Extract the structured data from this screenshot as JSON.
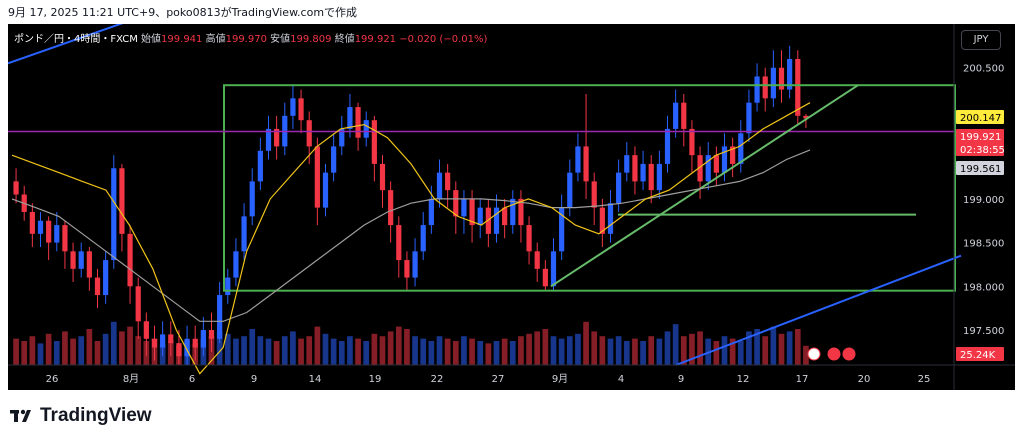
{
  "header": {
    "caption": "9月 17, 2025 11:21 UTC+9、poko0813がTradingView.comで作成"
  },
  "title_bar": {
    "symbol": "ポンド／円・4時間・FXCM",
    "open_label": "始値",
    "open_value": "199.941",
    "high_label": "高値",
    "high_value": "199.970",
    "low_label": "安値",
    "low_value": "199.809",
    "close_label": "終値",
    "close_value": "199.921",
    "change": "−0.020 (−0.01%)"
  },
  "currency_button": "JPY",
  "footer": {
    "brand": "TradingView"
  },
  "colors": {
    "up": "#2962ff",
    "down": "#f23645",
    "rectangle": "#4caf50",
    "support_line": "#66bb6a",
    "channel_line": "#2962ff",
    "ma_fast": "#f0c419",
    "ma_slow": "#9e9e9e",
    "horizontal_level": "#9c27b0",
    "price_tag_yellow": "#ffeb3b",
    "price_tag_red": "#f23645",
    "price_tag_gray": "#d1d4dc"
  },
  "chart_data": {
    "type": "candlestick",
    "instrument": "GBP/JPY",
    "interval": "4時間",
    "x_tick_labels": [
      "26",
      "8月",
      "6",
      "9",
      "14",
      "19",
      "22",
      "27",
      "9月",
      "4",
      "9",
      "12",
      "17",
      "20",
      "25"
    ],
    "y_tick_labels": [
      "200.500",
      "199.000",
      "198.500",
      "198.000",
      "197.500"
    ],
    "ylim": [
      197.1,
      201.0
    ],
    "price_tags": [
      {
        "value": "200.147",
        "kind": "level"
      },
      {
        "value": "199.921",
        "kind": "last"
      },
      {
        "value": "02:38:55",
        "kind": "countdown"
      },
      {
        "value": "199.561",
        "kind": "ma"
      },
      {
        "value": "25.24K",
        "kind": "volume"
      }
    ],
    "range_box": {
      "top": 200.3,
      "bottom": 197.95
    },
    "purple_level": 199.77,
    "green_support_horizontal": 198.82,
    "ascending_support": {
      "from": 198.0,
      "to": 200.3
    },
    "ma_fast": [
      199.5,
      199.4,
      199.3,
      199.2,
      199.1,
      198.7,
      198.2,
      197.5,
      197.0,
      197.3,
      198.4,
      199.0,
      199.3,
      199.6,
      199.8,
      199.85,
      199.7,
      199.4,
      199.0,
      198.8,
      198.7,
      198.9,
      199.0,
      198.9,
      198.7,
      198.6,
      198.8,
      199.0,
      199.1,
      199.3,
      199.5,
      199.6,
      199.8,
      199.95,
      200.1
    ],
    "ma_slow": [
      199.0,
      198.9,
      198.8,
      198.6,
      198.4,
      198.2,
      198.0,
      197.8,
      197.6,
      197.6,
      197.7,
      197.9,
      198.1,
      198.3,
      198.5,
      198.7,
      198.85,
      198.95,
      199.0,
      199.0,
      199.0,
      198.98,
      198.95,
      198.9,
      198.9,
      198.92,
      198.95,
      199.0,
      199.05,
      199.1,
      199.15,
      199.2,
      199.3,
      199.45,
      199.56
    ],
    "candles": [
      [
        199.2,
        199.05,
        199.35,
        198.95
      ],
      [
        199.05,
        198.85,
        199.15,
        198.75
      ],
      [
        198.85,
        198.6,
        198.95,
        198.45
      ],
      [
        198.6,
        198.75,
        198.85,
        198.45
      ],
      [
        198.75,
        198.5,
        198.8,
        198.3
      ],
      [
        198.5,
        198.7,
        198.85,
        198.4
      ],
      [
        198.7,
        198.4,
        198.75,
        198.2
      ],
      [
        198.4,
        198.2,
        198.5,
        198.05
      ],
      [
        198.2,
        198.4,
        198.5,
        198.1
      ],
      [
        198.4,
        198.1,
        198.45,
        197.95
      ],
      [
        198.1,
        197.9,
        198.2,
        197.75
      ],
      [
        197.9,
        198.3,
        198.4,
        197.8
      ],
      [
        198.3,
        199.35,
        199.5,
        198.2
      ],
      [
        199.35,
        198.6,
        199.4,
        198.4
      ],
      [
        198.6,
        198.0,
        198.7,
        197.8
      ],
      [
        198.0,
        197.6,
        198.1,
        197.4
      ],
      [
        197.6,
        197.4,
        197.7,
        197.2
      ],
      [
        197.4,
        197.3,
        197.55,
        197.15
      ],
      [
        197.3,
        197.45,
        197.6,
        197.2
      ],
      [
        197.45,
        197.35,
        197.6,
        197.2
      ],
      [
        197.35,
        197.2,
        197.5,
        197.1
      ],
      [
        197.2,
        197.4,
        197.55,
        197.1
      ],
      [
        197.4,
        197.3,
        197.55,
        197.15
      ],
      [
        197.3,
        197.5,
        197.65,
        197.2
      ],
      [
        197.5,
        197.4,
        197.7,
        197.25
      ],
      [
        197.4,
        197.9,
        198.05,
        197.35
      ],
      [
        197.9,
        198.1,
        198.2,
        197.8
      ],
      [
        198.1,
        198.4,
        198.55,
        198.0
      ],
      [
        198.4,
        198.8,
        198.95,
        198.3
      ],
      [
        198.8,
        199.2,
        199.35,
        198.7
      ],
      [
        199.2,
        199.55,
        199.7,
        199.1
      ],
      [
        199.55,
        199.8,
        199.95,
        199.45
      ],
      [
        199.8,
        199.6,
        199.95,
        199.45
      ],
      [
        199.6,
        199.95,
        200.1,
        199.5
      ],
      [
        199.95,
        200.15,
        200.3,
        199.8
      ],
      [
        200.15,
        199.9,
        200.25,
        199.75
      ],
      [
        199.9,
        199.6,
        200.0,
        199.4
      ],
      [
        199.6,
        198.9,
        199.7,
        198.7
      ],
      [
        198.9,
        199.3,
        199.4,
        198.8
      ],
      [
        199.3,
        199.6,
        199.75,
        199.2
      ],
      [
        199.6,
        199.8,
        199.95,
        199.5
      ],
      [
        199.8,
        200.05,
        200.2,
        199.7
      ],
      [
        200.05,
        199.7,
        200.1,
        199.55
      ],
      [
        199.7,
        199.9,
        200.0,
        199.6
      ],
      [
        199.9,
        199.4,
        199.95,
        199.2
      ],
      [
        199.4,
        199.1,
        199.5,
        198.9
      ],
      [
        199.1,
        198.7,
        199.2,
        198.5
      ],
      [
        198.7,
        198.3,
        198.8,
        198.1
      ],
      [
        198.3,
        198.1,
        198.4,
        197.95
      ],
      [
        198.1,
        198.4,
        198.55,
        198.0
      ],
      [
        198.4,
        198.7,
        198.85,
        198.3
      ],
      [
        198.7,
        199.0,
        199.15,
        198.6
      ],
      [
        199.0,
        199.3,
        199.45,
        198.9
      ],
      [
        199.3,
        199.1,
        199.4,
        198.9
      ],
      [
        199.1,
        198.8,
        199.2,
        198.6
      ],
      [
        198.8,
        199.0,
        199.1,
        198.6
      ],
      [
        199.0,
        198.7,
        199.1,
        198.5
      ],
      [
        198.7,
        198.9,
        199.0,
        198.55
      ],
      [
        198.9,
        198.6,
        199.0,
        198.45
      ],
      [
        198.6,
        198.9,
        199.05,
        198.5
      ],
      [
        198.9,
        198.7,
        199.0,
        198.55
      ],
      [
        198.7,
        199.0,
        199.1,
        198.6
      ],
      [
        199.0,
        198.7,
        199.1,
        198.5
      ],
      [
        198.7,
        198.4,
        198.8,
        198.25
      ],
      [
        198.4,
        198.2,
        198.5,
        198.05
      ],
      [
        198.2,
        198.0,
        198.3,
        197.95
      ],
      [
        198.0,
        198.4,
        198.55,
        197.95
      ],
      [
        198.4,
        198.9,
        199.05,
        198.3
      ],
      [
        198.9,
        199.3,
        199.45,
        198.8
      ],
      [
        199.3,
        199.6,
        199.75,
        199.2
      ],
      [
        199.6,
        199.2,
        200.2,
        199.0
      ],
      [
        199.2,
        198.9,
        199.3,
        198.7
      ],
      [
        198.9,
        198.6,
        199.0,
        198.45
      ],
      [
        198.6,
        198.95,
        199.1,
        198.5
      ],
      [
        198.95,
        199.3,
        199.45,
        198.85
      ],
      [
        199.3,
        199.5,
        199.65,
        199.2
      ],
      [
        199.5,
        199.2,
        199.6,
        199.05
      ],
      [
        199.2,
        199.4,
        199.55,
        199.1
      ],
      [
        199.4,
        199.1,
        199.5,
        198.95
      ],
      [
        199.1,
        199.4,
        199.55,
        199.0
      ],
      [
        199.4,
        199.8,
        199.95,
        199.3
      ],
      [
        199.8,
        200.1,
        200.25,
        199.7
      ],
      [
        200.1,
        199.8,
        200.2,
        199.6
      ],
      [
        199.8,
        199.5,
        199.9,
        199.3
      ],
      [
        199.5,
        199.2,
        199.6,
        199.0
      ],
      [
        199.2,
        199.5,
        199.65,
        199.1
      ],
      [
        199.5,
        199.3,
        199.6,
        199.15
      ],
      [
        199.3,
        199.6,
        199.75,
        199.2
      ],
      [
        199.6,
        199.4,
        199.7,
        199.25
      ],
      [
        199.4,
        199.75,
        199.9,
        199.3
      ],
      [
        199.75,
        200.1,
        200.25,
        199.65
      ],
      [
        200.1,
        200.4,
        200.55,
        200.0
      ],
      [
        200.4,
        200.15,
        200.5,
        200.0
      ],
      [
        200.15,
        200.5,
        200.7,
        200.05
      ],
      [
        200.5,
        200.25,
        200.7,
        200.1
      ],
      [
        200.25,
        200.6,
        200.75,
        200.15
      ],
      [
        200.6,
        199.95,
        200.7,
        199.85
      ],
      [
        199.95,
        199.92,
        199.97,
        199.81
      ]
    ],
    "volumes": [
      0.55,
      0.5,
      0.6,
      0.45,
      0.65,
      0.5,
      0.7,
      0.55,
      0.6,
      0.75,
      0.5,
      0.65,
      0.9,
      0.7,
      0.8,
      0.6,
      0.5,
      0.55,
      0.45,
      0.5,
      0.4,
      0.5,
      0.45,
      0.55,
      0.6,
      0.7,
      0.65,
      0.55,
      0.6,
      0.75,
      0.6,
      0.55,
      0.5,
      0.6,
      0.7,
      0.55,
      0.6,
      0.8,
      0.65,
      0.55,
      0.5,
      0.6,
      0.55,
      0.5,
      0.65,
      0.6,
      0.7,
      0.8,
      0.75,
      0.6,
      0.55,
      0.5,
      0.6,
      0.55,
      0.5,
      0.6,
      0.55,
      0.5,
      0.45,
      0.5,
      0.55,
      0.5,
      0.6,
      0.65,
      0.7,
      0.75,
      0.6,
      0.55,
      0.6,
      0.65,
      0.9,
      0.7,
      0.6,
      0.55,
      0.6,
      0.5,
      0.55,
      0.5,
      0.6,
      0.55,
      0.7,
      0.85,
      0.6,
      0.65,
      0.7,
      0.55,
      0.5,
      0.6,
      0.55,
      0.5,
      0.7,
      0.75,
      0.6,
      0.8,
      0.65,
      0.7,
      0.75,
      0.4
    ]
  }
}
